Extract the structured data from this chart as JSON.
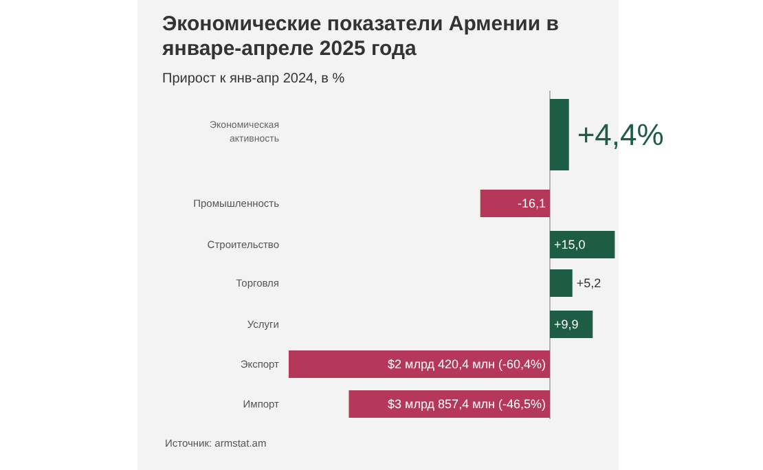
{
  "chart_data": {
    "type": "bar",
    "orientation": "horizontal",
    "title": "Экономические показатели Армении в январе-апреле 2025 года",
    "subtitle": "Прирост к янв-апр 2024, в %",
    "categories": [
      "Экономическая активность",
      "Промышленность",
      "Строительство",
      "Торговля",
      "Услуги",
      "Экспорт",
      "Импорт"
    ],
    "values": [
      4.4,
      -16.1,
      15.0,
      5.2,
      9.9,
      -60.4,
      -46.5
    ],
    "colors": [
      "#1d5c45",
      "#b5385a",
      "#1d5c45",
      "#1d5c45",
      "#1d5c45",
      "#b5385a",
      "#b5385a"
    ],
    "value_labels": [
      "+4,4%",
      "-16,1",
      "+15,0",
      "+5,2",
      "+9,9",
      "$2 млрд 420,4 млн (-60,4%)",
      "$3 млрд 857,4 млн (-46,5%)"
    ],
    "annotations": [
      "Источник: armstat.am"
    ]
  }
}
